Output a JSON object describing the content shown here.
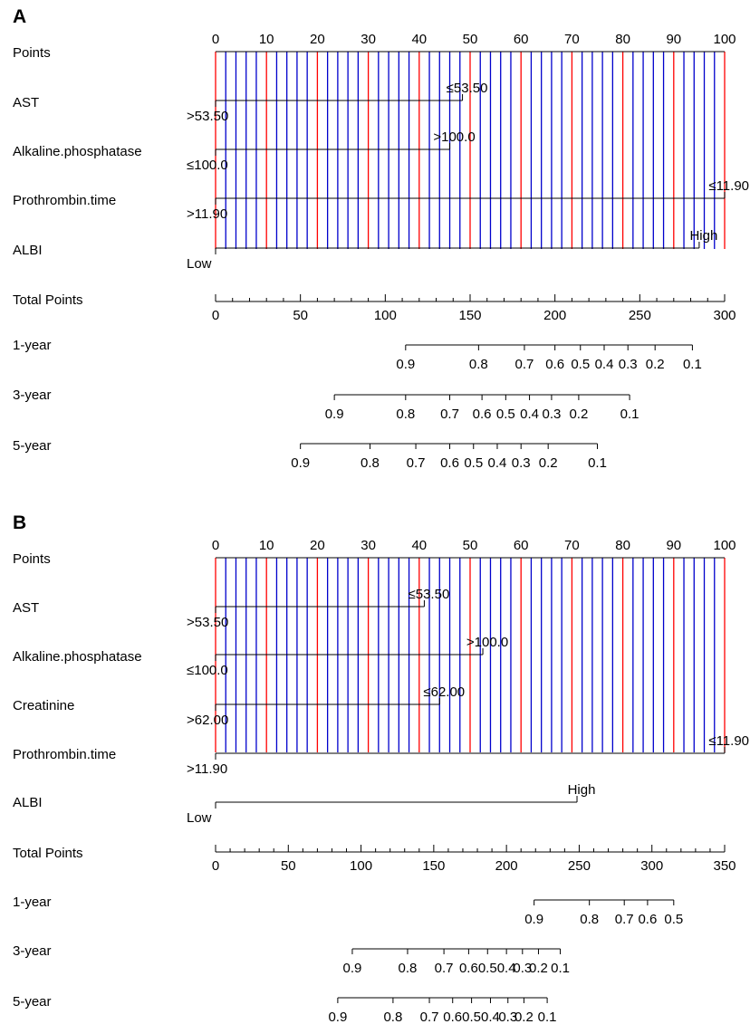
{
  "chart_data": [
    {
      "type": "nomogram",
      "panel": "A",
      "rows": {
        "points": "Points",
        "variables": [
          "AST",
          "Alkaline.phosphatase",
          "Prothrombin.time",
          "ALBI"
        ],
        "total": "Total Points",
        "survival": [
          "1-year",
          "3-year",
          "5-year"
        ]
      },
      "points_axis": {
        "range": [
          0,
          100
        ],
        "major_ticks": [
          0,
          10,
          20,
          30,
          40,
          50,
          60,
          70,
          80,
          90,
          100
        ],
        "minor_step": 2
      },
      "variables": [
        {
          "name": "AST",
          "levels": [
            {
              "label": ">53.50",
              "points": 0
            },
            {
              "label": "≤53.50",
              "points": 48.5
            }
          ]
        },
        {
          "name": "Alkaline.phosphatase",
          "levels": [
            {
              "label": "≤100.0",
              "points": 0
            },
            {
              "label": ">100.0",
              "points": 46
            }
          ]
        },
        {
          "name": "Prothrombin.time",
          "levels": [
            {
              "label": ">11.90",
              "points": 0
            },
            {
              "label": "≤11.90",
              "points": 100
            }
          ]
        },
        {
          "name": "ALBI",
          "levels": [
            {
              "label": "Low",
              "points": 0
            },
            {
              "label": "High",
              "points": 95
            }
          ]
        }
      ],
      "total_points_axis": {
        "range": [
          0,
          300
        ],
        "major_ticks": [
          0,
          50,
          100,
          150,
          200,
          250,
          300
        ],
        "minor_step": 10
      },
      "survival_axes": [
        {
          "name": "1-year",
          "ticks": [
            {
              "label": "0.9",
              "total_points": 112
            },
            {
              "label": "0.8",
              "total_points": 155
            },
            {
              "label": "0.7",
              "total_points": 182
            },
            {
              "label": "0.6",
              "total_points": 200
            },
            {
              "label": "0.5",
              "total_points": 215
            },
            {
              "label": "0.4",
              "total_points": 229
            },
            {
              "label": "0.3",
              "total_points": 243
            },
            {
              "label": "0.2",
              "total_points": 259
            },
            {
              "label": "0.1",
              "total_points": 281
            }
          ]
        },
        {
          "name": "3-year",
          "ticks": [
            {
              "label": "0.9",
              "total_points": 70
            },
            {
              "label": "0.8",
              "total_points": 112
            },
            {
              "label": "0.7",
              "total_points": 138
            },
            {
              "label": "0.6",
              "total_points": 157
            },
            {
              "label": "0.5",
              "total_points": 171
            },
            {
              "label": "0.4",
              "total_points": 185
            },
            {
              "label": "0.3",
              "total_points": 198
            },
            {
              "label": "0.2",
              "total_points": 214
            },
            {
              "label": "0.1",
              "total_points": 244
            }
          ]
        },
        {
          "name": "5-year",
          "ticks": [
            {
              "label": "0.9",
              "total_points": 50
            },
            {
              "label": "0.8",
              "total_points": 91
            },
            {
              "label": "0.7",
              "total_points": 118
            },
            {
              "label": "0.6",
              "total_points": 138
            },
            {
              "label": "0.5",
              "total_points": 152
            },
            {
              "label": "0.4",
              "total_points": 166
            },
            {
              "label": "0.3",
              "total_points": 180
            },
            {
              "label": "0.2",
              "total_points": 196
            },
            {
              "label": "0.1",
              "total_points": 225
            }
          ]
        }
      ]
    },
    {
      "type": "nomogram",
      "panel": "B",
      "rows": {
        "points": "Points",
        "variables": [
          "AST",
          "Alkaline.phosphatase",
          "Creatinine",
          "Prothrombin.time",
          "ALBI"
        ],
        "total": "Total Points",
        "survival": [
          "1-year",
          "3-year",
          "5-year"
        ]
      },
      "points_axis": {
        "range": [
          0,
          100
        ],
        "major_ticks": [
          0,
          10,
          20,
          30,
          40,
          50,
          60,
          70,
          80,
          90,
          100
        ],
        "minor_step": 2
      },
      "variables": [
        {
          "name": "AST",
          "levels": [
            {
              "label": ">53.50",
              "points": 0
            },
            {
              "label": "≤53.50",
              "points": 41
            }
          ]
        },
        {
          "name": "Alkaline.phosphatase",
          "levels": [
            {
              "label": "≤100.0",
              "points": 0
            },
            {
              "label": ">100.0",
              "points": 52.5
            }
          ]
        },
        {
          "name": "Creatinine",
          "levels": [
            {
              "label": ">62.00",
              "points": 0
            },
            {
              "label": "≤62.00",
              "points": 44
            }
          ]
        },
        {
          "name": "Prothrombin.time",
          "levels": [
            {
              "label": ">11.90",
              "points": 0
            },
            {
              "label": "≤11.90",
              "points": 100
            }
          ]
        },
        {
          "name": "ALBI",
          "levels": [
            {
              "label": "Low",
              "points": 0
            },
            {
              "label": "High",
              "points": 71
            }
          ]
        }
      ],
      "total_points_axis": {
        "range": [
          0,
          350
        ],
        "major_ticks": [
          0,
          50,
          100,
          150,
          200,
          250,
          300,
          350
        ],
        "minor_step": 10
      },
      "survival_axes": [
        {
          "name": "1-year",
          "ticks": [
            {
              "label": "0.9",
              "total_points": 219
            },
            {
              "label": "0.8",
              "total_points": 257
            },
            {
              "label": "0.7",
              "total_points": 281
            },
            {
              "label": "0.6",
              "total_points": 297
            },
            {
              "label": "0.5",
              "total_points": 315
            }
          ]
        },
        {
          "name": "3-year",
          "ticks": [
            {
              "label": "0.9",
              "total_points": 94
            },
            {
              "label": "0.8",
              "total_points": 132
            },
            {
              "label": "0.7",
              "total_points": 157
            },
            {
              "label": "0.6",
              "total_points": 174
            },
            {
              "label": "0.5",
              "total_points": 187
            },
            {
              "label": "0.4",
              "total_points": 200
            },
            {
              "label": "0.3",
              "total_points": 211
            },
            {
              "label": "0.2",
              "total_points": 222
            },
            {
              "label": "0.1",
              "total_points": 237
            }
          ]
        },
        {
          "name": "5-year",
          "ticks": [
            {
              "label": "0.9",
              "total_points": 84
            },
            {
              "label": "0.8",
              "total_points": 122
            },
            {
              "label": "0.7",
              "total_points": 147
            },
            {
              "label": "0.6",
              "total_points": 163
            },
            {
              "label": "0.5",
              "total_points": 176
            },
            {
              "label": "0.4",
              "total_points": 189
            },
            {
              "label": "0.3",
              "total_points": 201
            },
            {
              "label": "0.2",
              "total_points": 212
            },
            {
              "label": "0.1",
              "total_points": 228
            }
          ]
        }
      ]
    }
  ],
  "colors": {
    "major_gridline": "#ff0000",
    "minor_gridline": "#0000cc",
    "axis": "#000000"
  }
}
